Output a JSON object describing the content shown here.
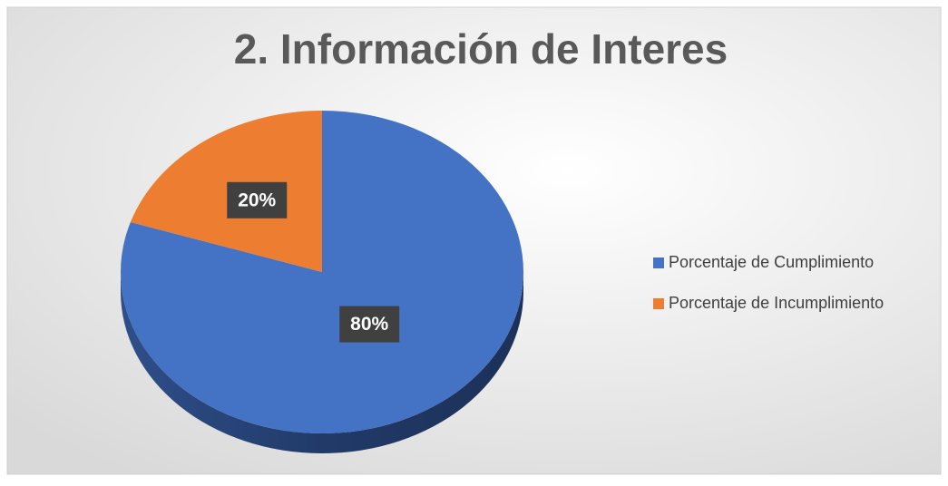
{
  "chart_data": {
    "type": "pie",
    "title": "2. Información de Interes",
    "categories": [
      "Porcentaje de Cumplimiento",
      "Porcentaje de Incumplimiento"
    ],
    "values": [
      80,
      20
    ],
    "value_labels": [
      "80%",
      "20%"
    ],
    "colors": [
      "#4472c4",
      "#ed7d31"
    ],
    "legend": "right"
  }
}
